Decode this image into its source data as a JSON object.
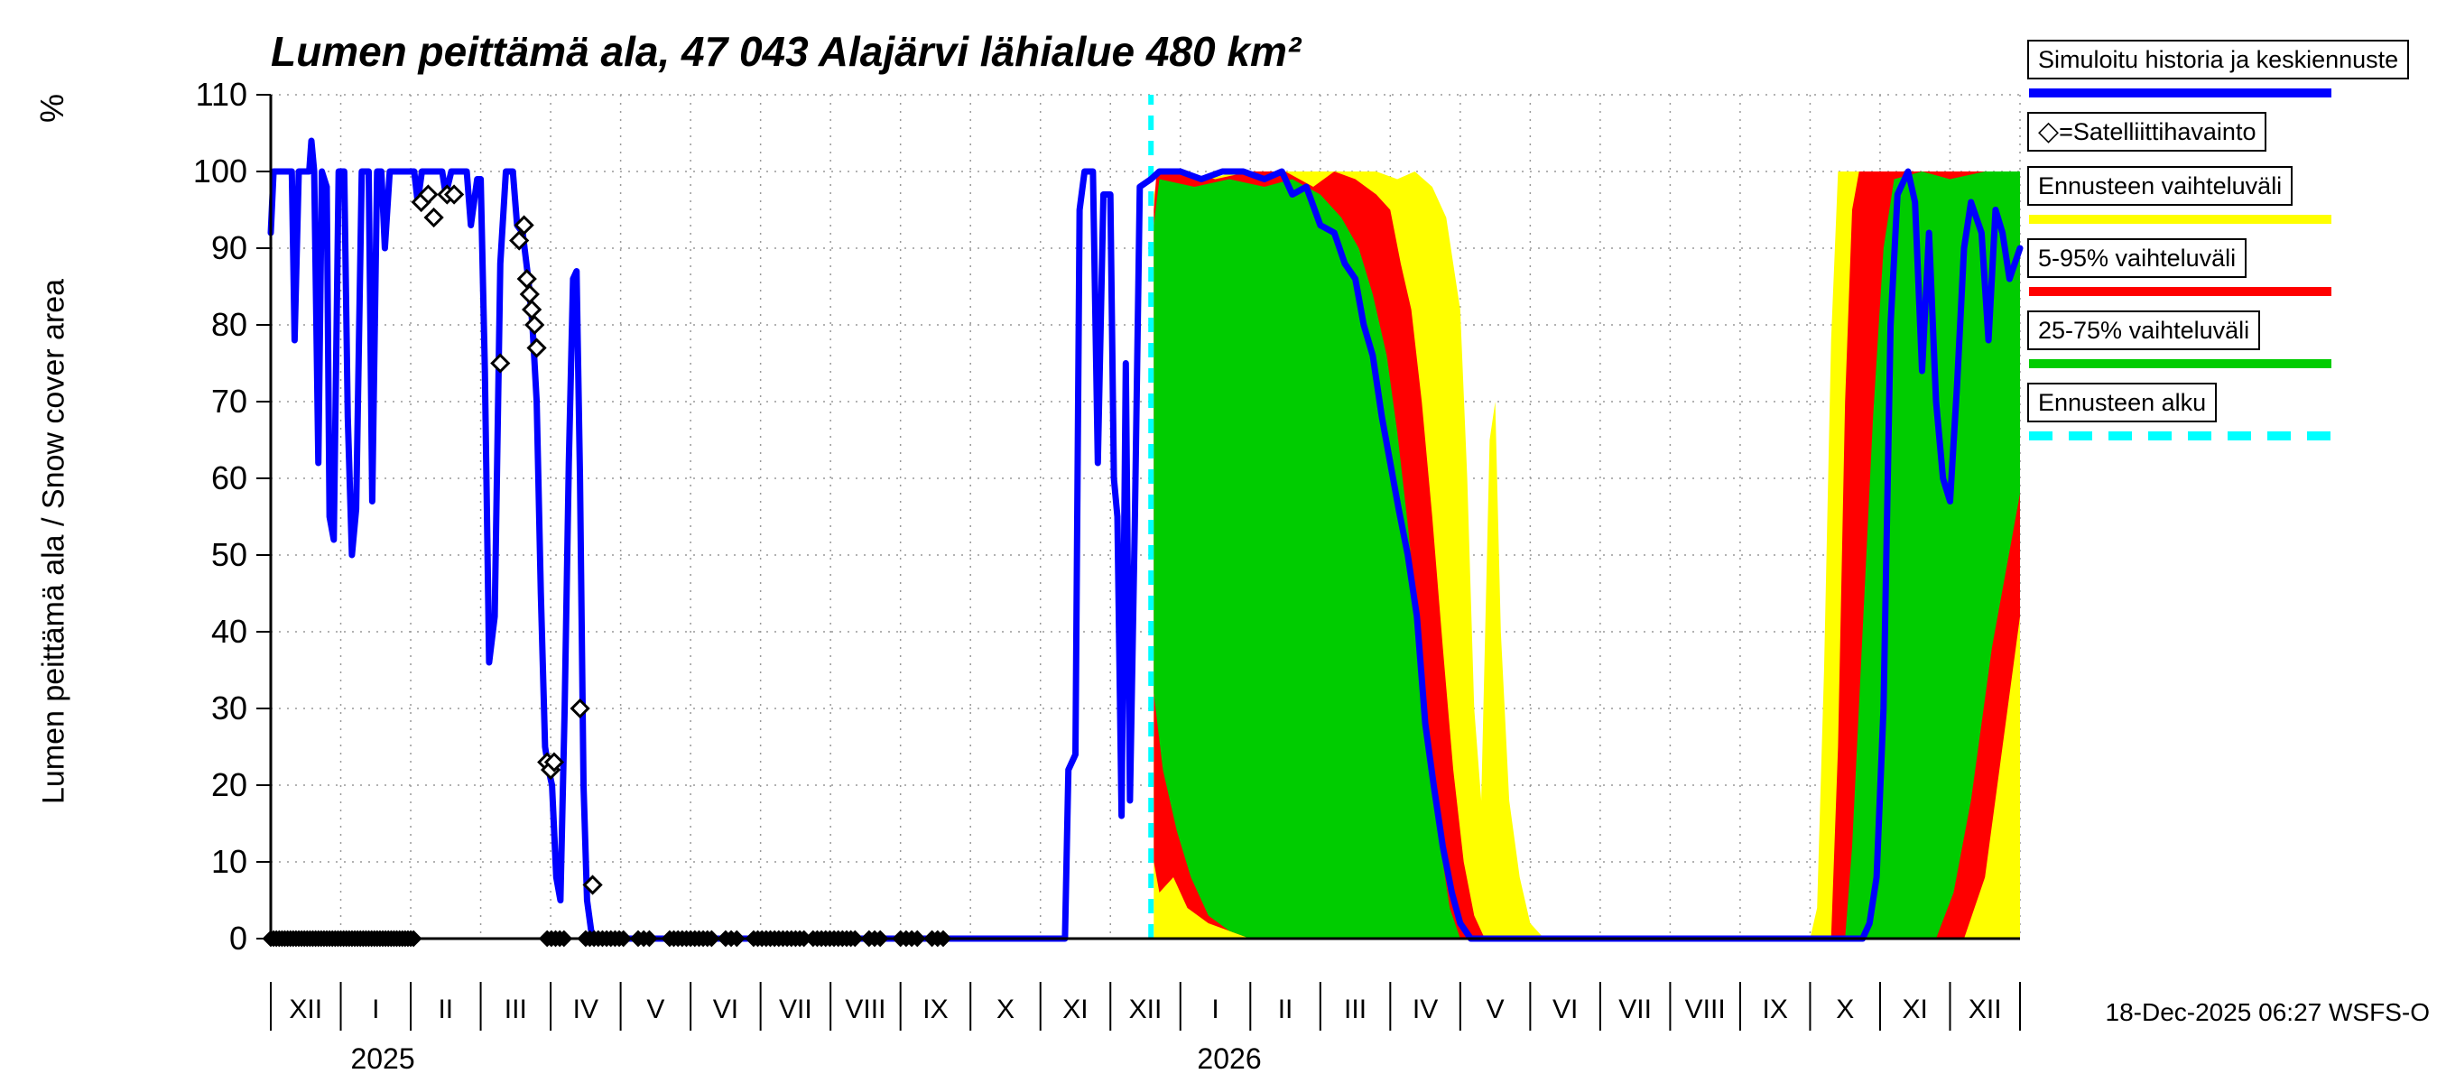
{
  "title": "Lumen peittämä ala, 47 043 Alajärvi lähialue 480 km²",
  "axes": {
    "ylabel": "Lumen peittämä ala / Snow cover area",
    "yunit": "%",
    "timestamp": "18-Dec-2025 06:27 WSFS-O"
  },
  "legend": {
    "history": {
      "label": "Simuloitu historia ja keskiennuste"
    },
    "satellite": {
      "icon": "◇",
      "label": "=Satelliittihavainto"
    },
    "range_full": {
      "label": "Ennusteen vaihteluväli"
    },
    "range_5_95": {
      "label": "5-95% vaihteluväli"
    },
    "range_25_75": {
      "label": "25-75% vaihteluväli"
    },
    "forecast_start": {
      "label": "Ennusteen alku"
    }
  },
  "chart_data": {
    "type": "line",
    "title": "Lumen peittämä ala, 47 043 Alajärvi lähialue 480 km²",
    "ylabel": "Lumen peittämä ala / Snow cover area (%)",
    "xlabel": "",
    "ylim": [
      0,
      110
    ],
    "xlim": [
      0,
      25
    ],
    "yticks": [
      0,
      10,
      20,
      30,
      40,
      50,
      60,
      70,
      80,
      90,
      100,
      110
    ],
    "xticklabels": [
      "XII",
      "I",
      "II",
      "III",
      "IV",
      "V",
      "VI",
      "VII",
      "VIII",
      "IX",
      "X",
      "XI",
      "XII",
      "I",
      "II",
      "III",
      "IV",
      "V",
      "VI",
      "VII",
      "VIII",
      "IX",
      "X",
      "XI",
      "XII"
    ],
    "year_labels": [
      {
        "label": "2025",
        "x": 1.6
      },
      {
        "label": "2026",
        "x": 13.7
      }
    ],
    "forecast_start_x": 12.58,
    "grid": true,
    "legend_position": "right",
    "colors": {
      "history": "#0000ff",
      "satellite": "#000000",
      "range_full": "#ffff00",
      "range_5_95": "#ff0000",
      "range_25_75": "#00cc00",
      "forecast_start": "#00ffff",
      "grid": "#999999"
    },
    "series": {
      "history": [
        [
          0,
          92
        ],
        [
          0.04,
          100
        ],
        [
          0.3,
          100
        ],
        [
          0.34,
          78
        ],
        [
          0.4,
          100
        ],
        [
          0.55,
          100
        ],
        [
          0.58,
          104
        ],
        [
          0.62,
          100
        ],
        [
          0.68,
          62
        ],
        [
          0.73,
          100
        ],
        [
          0.8,
          98
        ],
        [
          0.84,
          55
        ],
        [
          0.9,
          52
        ],
        [
          0.97,
          100
        ],
        [
          1.05,
          100
        ],
        [
          1.1,
          68
        ],
        [
          1.16,
          50
        ],
        [
          1.22,
          56
        ],
        [
          1.3,
          100
        ],
        [
          1.4,
          100
        ],
        [
          1.45,
          57
        ],
        [
          1.52,
          100
        ],
        [
          1.58,
          100
        ],
        [
          1.63,
          90
        ],
        [
          1.7,
          100
        ],
        [
          2.05,
          100
        ],
        [
          2.1,
          96
        ],
        [
          2.16,
          100
        ],
        [
          2.45,
          100
        ],
        [
          2.5,
          97
        ],
        [
          2.58,
          100
        ],
        [
          2.8,
          100
        ],
        [
          2.86,
          93
        ],
        [
          2.95,
          99
        ],
        [
          3,
          99
        ],
        [
          3.06,
          74
        ],
        [
          3.12,
          36
        ],
        [
          3.2,
          42
        ],
        [
          3.28,
          88
        ],
        [
          3.36,
          100
        ],
        [
          3.46,
          100
        ],
        [
          3.52,
          93
        ],
        [
          3.6,
          92
        ],
        [
          3.68,
          86
        ],
        [
          3.74,
          80
        ],
        [
          3.8,
          70
        ],
        [
          3.86,
          45
        ],
        [
          3.92,
          25
        ],
        [
          3.97,
          22
        ],
        [
          4.02,
          20
        ],
        [
          4.08,
          8
        ],
        [
          4.14,
          5
        ],
        [
          4.2,
          30
        ],
        [
          4.26,
          62
        ],
        [
          4.32,
          86
        ],
        [
          4.37,
          87
        ],
        [
          4.42,
          60
        ],
        [
          4.47,
          20
        ],
        [
          4.52,
          5
        ],
        [
          4.58,
          1
        ],
        [
          4.65,
          0
        ],
        [
          11.35,
          0
        ],
        [
          11.4,
          22
        ],
        [
          11.5,
          24
        ],
        [
          11.56,
          95
        ],
        [
          11.63,
          100
        ],
        [
          11.75,
          100
        ],
        [
          11.82,
          62
        ],
        [
          11.9,
          97
        ],
        [
          12,
          97
        ],
        [
          12.05,
          60
        ],
        [
          12.1,
          55
        ],
        [
          12.16,
          16
        ],
        [
          12.22,
          75
        ],
        [
          12.28,
          18
        ],
        [
          12.35,
          55
        ],
        [
          12.42,
          98
        ],
        [
          12.58,
          99
        ]
      ],
      "forecast_mean": [
        [
          12.58,
          99
        ],
        [
          12.7,
          100
        ],
        [
          13,
          100
        ],
        [
          13.3,
          99
        ],
        [
          13.6,
          100
        ],
        [
          13.9,
          100
        ],
        [
          14.2,
          99
        ],
        [
          14.45,
          100
        ],
        [
          14.6,
          97
        ],
        [
          14.8,
          98
        ],
        [
          15,
          93
        ],
        [
          15.2,
          92
        ],
        [
          15.35,
          88
        ],
        [
          15.5,
          86
        ],
        [
          15.62,
          80
        ],
        [
          15.75,
          76
        ],
        [
          15.88,
          68
        ],
        [
          16,
          62
        ],
        [
          16.12,
          56
        ],
        [
          16.25,
          50
        ],
        [
          16.38,
          42
        ],
        [
          16.5,
          28
        ],
        [
          16.62,
          20
        ],
        [
          16.75,
          12
        ],
        [
          16.88,
          6
        ],
        [
          17,
          2
        ],
        [
          17.15,
          0
        ],
        [
          22.75,
          0
        ],
        [
          22.85,
          2
        ],
        [
          22.95,
          8
        ],
        [
          23.05,
          30
        ],
        [
          23.15,
          80
        ],
        [
          23.25,
          97
        ],
        [
          23.4,
          100
        ],
        [
          23.5,
          96
        ],
        [
          23.6,
          74
        ],
        [
          23.7,
          92
        ],
        [
          23.8,
          70
        ],
        [
          23.9,
          60
        ],
        [
          24,
          57
        ],
        [
          24.1,
          72
        ],
        [
          24.2,
          90
        ],
        [
          24.3,
          96
        ],
        [
          24.45,
          92
        ],
        [
          24.55,
          78
        ],
        [
          24.65,
          95
        ],
        [
          24.75,
          92
        ],
        [
          24.85,
          86
        ],
        [
          25,
          90
        ]
      ],
      "band_minmax": {
        "top": [
          [
            12.62,
            97
          ],
          [
            12.7,
            100
          ],
          [
            13,
            100
          ],
          [
            13.4,
            99
          ],
          [
            13.8,
            100
          ],
          [
            14.3,
            100
          ],
          [
            14.8,
            100
          ],
          [
            15.3,
            100
          ],
          [
            15.8,
            100
          ],
          [
            16.1,
            99
          ],
          [
            16.35,
            100
          ],
          [
            16.6,
            98
          ],
          [
            16.8,
            94
          ],
          [
            17,
            82
          ],
          [
            17.1,
            60
          ],
          [
            17.2,
            30
          ],
          [
            17.3,
            18
          ],
          [
            17.42,
            65
          ],
          [
            17.5,
            70
          ],
          [
            17.58,
            40
          ],
          [
            17.7,
            18
          ],
          [
            17.85,
            8
          ],
          [
            18,
            2
          ],
          [
            18.2,
            0
          ],
          [
            22,
            0
          ],
          [
            22.1,
            4
          ],
          [
            22.2,
            35
          ],
          [
            22.3,
            78
          ],
          [
            22.4,
            100
          ],
          [
            23,
            100
          ],
          [
            25,
            100
          ]
        ],
        "bottom": [
          [
            12.62,
            0
          ],
          [
            25,
            0
          ]
        ]
      },
      "band_5_95": {
        "top": [
          [
            12.62,
            95
          ],
          [
            12.66,
            100
          ],
          [
            13,
            100
          ],
          [
            13.5,
            99
          ],
          [
            14,
            100
          ],
          [
            14.5,
            100
          ],
          [
            14.9,
            98
          ],
          [
            15.2,
            100
          ],
          [
            15.5,
            99
          ],
          [
            15.8,
            97
          ],
          [
            16,
            95
          ],
          [
            16.15,
            88
          ],
          [
            16.3,
            82
          ],
          [
            16.45,
            70
          ],
          [
            16.6,
            55
          ],
          [
            16.75,
            38
          ],
          [
            16.9,
            22
          ],
          [
            17.05,
            10
          ],
          [
            17.2,
            3
          ],
          [
            17.35,
            0
          ],
          [
            22.3,
            0
          ],
          [
            22.4,
            25
          ],
          [
            22.5,
            70
          ],
          [
            22.6,
            95
          ],
          [
            22.7,
            100
          ],
          [
            23.3,
            100
          ],
          [
            23.8,
            100
          ],
          [
            24.3,
            100
          ],
          [
            25,
            100
          ]
        ],
        "bottom": [
          [
            12.62,
            10
          ],
          [
            12.7,
            6
          ],
          [
            12.9,
            8
          ],
          [
            13.1,
            4
          ],
          [
            13.4,
            2
          ],
          [
            13.7,
            1
          ],
          [
            14,
            0
          ],
          [
            24.2,
            0
          ],
          [
            24.5,
            8
          ],
          [
            24.75,
            25
          ],
          [
            25,
            42
          ]
        ]
      },
      "band_25_75": {
        "top": [
          [
            12.62,
            93
          ],
          [
            12.7,
            99
          ],
          [
            13.2,
            98
          ],
          [
            13.7,
            99
          ],
          [
            14.2,
            98
          ],
          [
            14.6,
            99
          ],
          [
            15,
            97
          ],
          [
            15.3,
            94
          ],
          [
            15.55,
            90
          ],
          [
            15.75,
            84
          ],
          [
            15.95,
            76
          ],
          [
            16.1,
            66
          ],
          [
            16.25,
            54
          ],
          [
            16.4,
            40
          ],
          [
            16.55,
            26
          ],
          [
            16.7,
            13
          ],
          [
            16.85,
            4
          ],
          [
            17,
            0
          ],
          [
            22.5,
            0
          ],
          [
            22.6,
            12
          ],
          [
            22.75,
            40
          ],
          [
            22.9,
            68
          ],
          [
            23.05,
            90
          ],
          [
            23.2,
            99
          ],
          [
            23.6,
            100
          ],
          [
            24,
            99
          ],
          [
            24.5,
            100
          ],
          [
            25,
            100
          ]
        ],
        "bottom": [
          [
            12.62,
            32
          ],
          [
            12.75,
            22
          ],
          [
            12.95,
            14
          ],
          [
            13.15,
            8
          ],
          [
            13.4,
            3
          ],
          [
            13.7,
            1
          ],
          [
            14,
            0
          ],
          [
            23.8,
            0
          ],
          [
            24.05,
            6
          ],
          [
            24.3,
            18
          ],
          [
            24.6,
            38
          ],
          [
            25,
            58
          ]
        ]
      },
      "satellite_obs": [
        [
          2.15,
          96
        ],
        [
          2.25,
          97
        ],
        [
          2.33,
          94
        ],
        [
          2.52,
          97
        ],
        [
          2.62,
          97
        ],
        [
          3.28,
          75
        ],
        [
          3.55,
          91
        ],
        [
          3.62,
          93
        ],
        [
          3.66,
          86
        ],
        [
          3.7,
          84
        ],
        [
          3.73,
          82
        ],
        [
          3.77,
          80
        ],
        [
          3.8,
          77
        ],
        [
          3.95,
          23
        ],
        [
          4,
          22
        ],
        [
          4.05,
          23
        ],
        [
          4.42,
          30
        ],
        [
          4.6,
          7
        ]
      ],
      "satellite_obs_zero_runs": [
        [
          0,
          2.05,
          0.04
        ],
        [
          3.95,
          4.2,
          0.06
        ],
        [
          4.5,
          5.05,
          0.06
        ],
        [
          5.25,
          5.45,
          0.08
        ],
        [
          5.7,
          6.3,
          0.06
        ],
        [
          6.5,
          6.68,
          0.08
        ],
        [
          6.9,
          7.62,
          0.06
        ],
        [
          7.75,
          8.35,
          0.06
        ],
        [
          8.55,
          8.78,
          0.08
        ],
        [
          9,
          9.25,
          0.08
        ],
        [
          9.45,
          9.68,
          0.08
        ]
      ]
    }
  }
}
